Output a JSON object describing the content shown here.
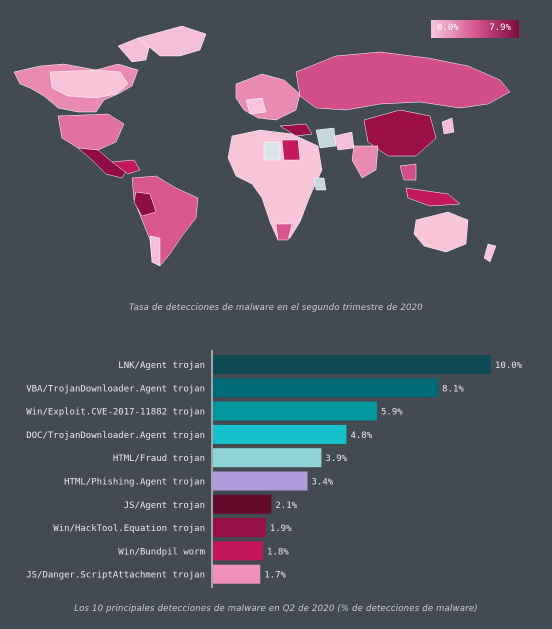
{
  "map": {
    "legend_min": "0.0%",
    "legend_max": "7.9%",
    "legend_colors": [
      "#f6c7d9",
      "#d14e8a",
      "#7a0a3f"
    ],
    "caption": "Tasa de detecciones de malware en el segundo trimestre de 2020"
  },
  "chart_data": {
    "type": "bar",
    "orientation": "horizontal",
    "categories": [
      "LNK/Agent trojan",
      "VBA/TrojanDownloader.Agent trojan",
      "Win/Exploit.CVE-2017-11882 trojan",
      "DOC/TrojanDownloader.Agent trojan",
      "HTML/Fraud trojan",
      "HTML/Phishing.Agent trojan",
      "JS/Agent trojan",
      "Win/HackTool.Equation trojan",
      "Win/Bundpil worm",
      "JS/Danger.ScriptAttachment trojan"
    ],
    "values": [
      10.0,
      8.1,
      5.9,
      4.8,
      3.9,
      3.4,
      2.1,
      1.9,
      1.8,
      1.7
    ],
    "value_labels": [
      "10.0%",
      "8.1%",
      "5.9%",
      "4.8%",
      "3.9%",
      "3.4%",
      "2.1%",
      "1.9%",
      "1.8%",
      "1.7%"
    ],
    "colors": [
      "#0e4a54",
      "#006b78",
      "#00979f",
      "#16c3cc",
      "#8ed3d7",
      "#b09cdc",
      "#620a29",
      "#970f45",
      "#c41559",
      "#f190b9"
    ],
    "xlim": [
      0,
      10.0
    ],
    "grid": false,
    "caption": "Los 10 principales detecciones de malware en Q2 de 2020 (% de detecciones de malware)"
  }
}
